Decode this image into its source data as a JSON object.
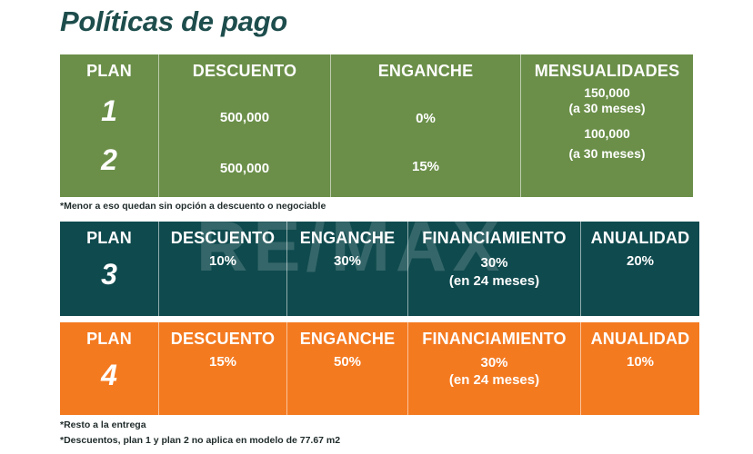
{
  "title": "Políticas de pago",
  "colors": {
    "green": "#6b8f49",
    "teal": "#0f4a4e",
    "orange": "#f47a20",
    "title": "#1d4d4c"
  },
  "table1": {
    "headers": [
      "PLAN",
      "DESCUENTO",
      "ENGANCHE",
      "MENSUALIDADES"
    ],
    "rows": [
      {
        "plan": "1",
        "descuento": "500,000",
        "enganche": "0%",
        "mensualidad": "150,000",
        "mensualidad_note": "(a 30 meses)"
      },
      {
        "plan": "2",
        "descuento": "500,000",
        "enganche": "15%",
        "mensualidad": "100,000",
        "mensualidad_note": "(a 30 meses)"
      }
    ]
  },
  "note1": "*Menor a eso quedan sin opción a descuento o negociable",
  "watermark": "RE/MAX",
  "plan3": {
    "headers": [
      "PLAN",
      "DESCUENTO",
      "ENGANCHE",
      "FINANCIAMIENTO",
      "ANUALIDAD"
    ],
    "plan": "3",
    "descuento": "10%",
    "enganche": "30%",
    "financiamiento": "30%",
    "financiamiento_note": "(en 24 meses)",
    "anualidad": "20%"
  },
  "plan4": {
    "headers": [
      "PLAN",
      "DESCUENTO",
      "ENGANCHE",
      "FINANCIAMIENTO",
      "ANUALIDAD"
    ],
    "plan": "4",
    "descuento": "15%",
    "enganche": "50%",
    "financiamiento": "30%",
    "financiamiento_note": "(en 24 meses)",
    "anualidad": "10%"
  },
  "footnotes": [
    "*Resto a la entrega",
    "*Descuentos, plan 1 y plan 2 no aplica en modelo de 77.67 m2"
  ]
}
